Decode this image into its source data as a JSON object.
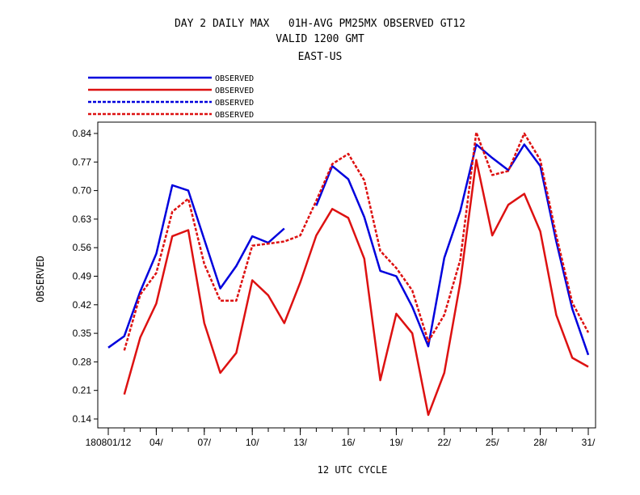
{
  "header": {
    "title_line1": "DAY 2 DAILY MAX   01H-AVG PM25MX OBSERVED GT12",
    "title_line2": "VALID 1200 GMT",
    "title_line3": "EAST-US"
  },
  "colors": {
    "blue": "#0000dd",
    "red": "#dd1111"
  },
  "chart_data": {
    "type": "line",
    "xlabel": "12 UTC CYCLE",
    "ylabel": "OBSERVED",
    "ylim": [
      0.14,
      0.84
    ],
    "yticks": [
      "0.14",
      "0.21",
      "0.28",
      "0.35",
      "0.42",
      "0.49",
      "0.56",
      "0.63",
      "0.70",
      "0.77",
      "0.84"
    ],
    "x": [
      1,
      2,
      3,
      4,
      5,
      6,
      7,
      8,
      9,
      10,
      11,
      12,
      13,
      14,
      15,
      16,
      17,
      18,
      19,
      20,
      21,
      22,
      23,
      24,
      25,
      26,
      27,
      28,
      29,
      30,
      31
    ],
    "xticks": [
      {
        "day": 1,
        "label": "180801/12"
      },
      {
        "day": 4,
        "label": "04/"
      },
      {
        "day": 7,
        "label": "07/"
      },
      {
        "day": 10,
        "label": "10/"
      },
      {
        "day": 13,
        "label": "13/"
      },
      {
        "day": 16,
        "label": "16/"
      },
      {
        "day": 19,
        "label": "19/"
      },
      {
        "day": 22,
        "label": "22/"
      },
      {
        "day": 25,
        "label": "25/"
      },
      {
        "day": 28,
        "label": "28/"
      },
      {
        "day": 31,
        "label": "31/"
      }
    ],
    "series": [
      {
        "name": "OBSERVED",
        "color": "blue",
        "dash": "solid",
        "values": [
          0.315,
          0.343,
          0.453,
          0.545,
          0.713,
          0.7,
          0.58,
          0.46,
          0.515,
          0.588,
          0.572,
          0.607,
          null,
          0.663,
          0.76,
          0.728,
          0.635,
          0.503,
          0.49,
          0.415,
          0.318,
          0.535,
          0.65,
          0.813,
          0.78,
          0.75,
          0.813,
          0.76,
          0.575,
          0.41,
          0.297
        ]
      },
      {
        "name": "OBSERVED",
        "color": "red",
        "dash": "solid",
        "values": [
          null,
          0.2,
          0.34,
          0.423,
          0.588,
          0.603,
          0.375,
          0.253,
          0.302,
          0.48,
          0.443,
          0.375,
          0.475,
          0.59,
          0.655,
          0.633,
          0.533,
          0.235,
          0.398,
          0.35,
          0.15,
          0.253,
          0.475,
          0.775,
          0.59,
          0.665,
          0.692,
          0.6,
          0.395,
          0.29,
          0.268
        ]
      },
      {
        "name": "OBSERVED",
        "color": "blue",
        "dash": "dashed",
        "values": [
          null,
          null,
          null,
          null,
          null,
          null,
          null,
          null,
          null,
          null,
          null,
          null,
          null,
          null,
          null,
          null,
          null,
          null,
          null,
          null,
          null,
          null,
          null,
          null,
          null,
          null,
          null,
          null,
          null,
          null,
          null
        ]
      },
      {
        "name": "OBSERVED",
        "color": "red",
        "dash": "dashed",
        "values": [
          null,
          0.308,
          0.445,
          0.498,
          0.648,
          0.68,
          0.52,
          0.43,
          0.43,
          0.565,
          0.57,
          0.575,
          0.59,
          0.675,
          0.765,
          0.79,
          0.725,
          0.552,
          0.51,
          0.455,
          0.33,
          0.395,
          0.53,
          0.843,
          0.738,
          0.748,
          0.84,
          0.775,
          0.59,
          0.425,
          0.352
        ]
      }
    ],
    "grid": false,
    "legend_placement": "top-left"
  }
}
